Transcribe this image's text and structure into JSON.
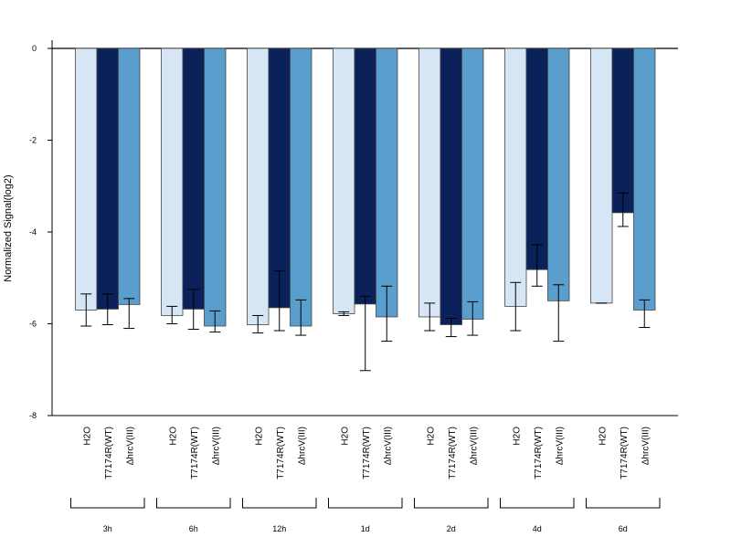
{
  "chart_data": {
    "type": "bar",
    "ylabel": "Normalized Signal(log2)",
    "ylim": [
      -8,
      0
    ],
    "yticks": [
      "0",
      "-2",
      "-4",
      "-6",
      "-8"
    ],
    "groups": [
      "3h",
      "6h",
      "12h",
      "1d",
      "2d",
      "4d",
      "6d"
    ],
    "series": [
      {
        "name": "H2O",
        "color": "#d6e6f5",
        "values": [
          -5.7,
          -5.82,
          -6.02,
          -5.78,
          -5.85,
          -5.62,
          -5.55
        ],
        "err_low": [
          -6.05,
          -6.0,
          -6.2,
          -5.82,
          -6.15,
          -6.15,
          -5.55
        ],
        "err_high": [
          -5.35,
          -5.62,
          -5.82,
          -5.74,
          -5.55,
          -5.1,
          -5.55
        ]
      },
      {
        "name": "T7174R(WT)",
        "color": "#0b2159",
        "values": [
          -5.68,
          -5.68,
          -5.65,
          -5.57,
          -6.02,
          -4.82,
          -3.58
        ],
        "err_low": [
          -6.02,
          -6.12,
          -6.15,
          -7.02,
          -6.28,
          -5.18,
          -3.88
        ],
        "err_high": [
          -5.35,
          -5.25,
          -4.85,
          -5.4,
          -5.88,
          -4.28,
          -3.15
        ]
      },
      {
        "name": "ΔhrcV(III)",
        "color": "#5a9ecd",
        "values": [
          -5.58,
          -6.05,
          -6.05,
          -5.85,
          -5.9,
          -5.5,
          -5.7
        ],
        "err_low": [
          -6.1,
          -6.18,
          -6.25,
          -6.38,
          -6.25,
          -6.38,
          -6.08
        ],
        "err_high": [
          -5.45,
          -5.72,
          -5.48,
          -5.18,
          -5.52,
          -5.15,
          -5.48
        ]
      }
    ]
  }
}
